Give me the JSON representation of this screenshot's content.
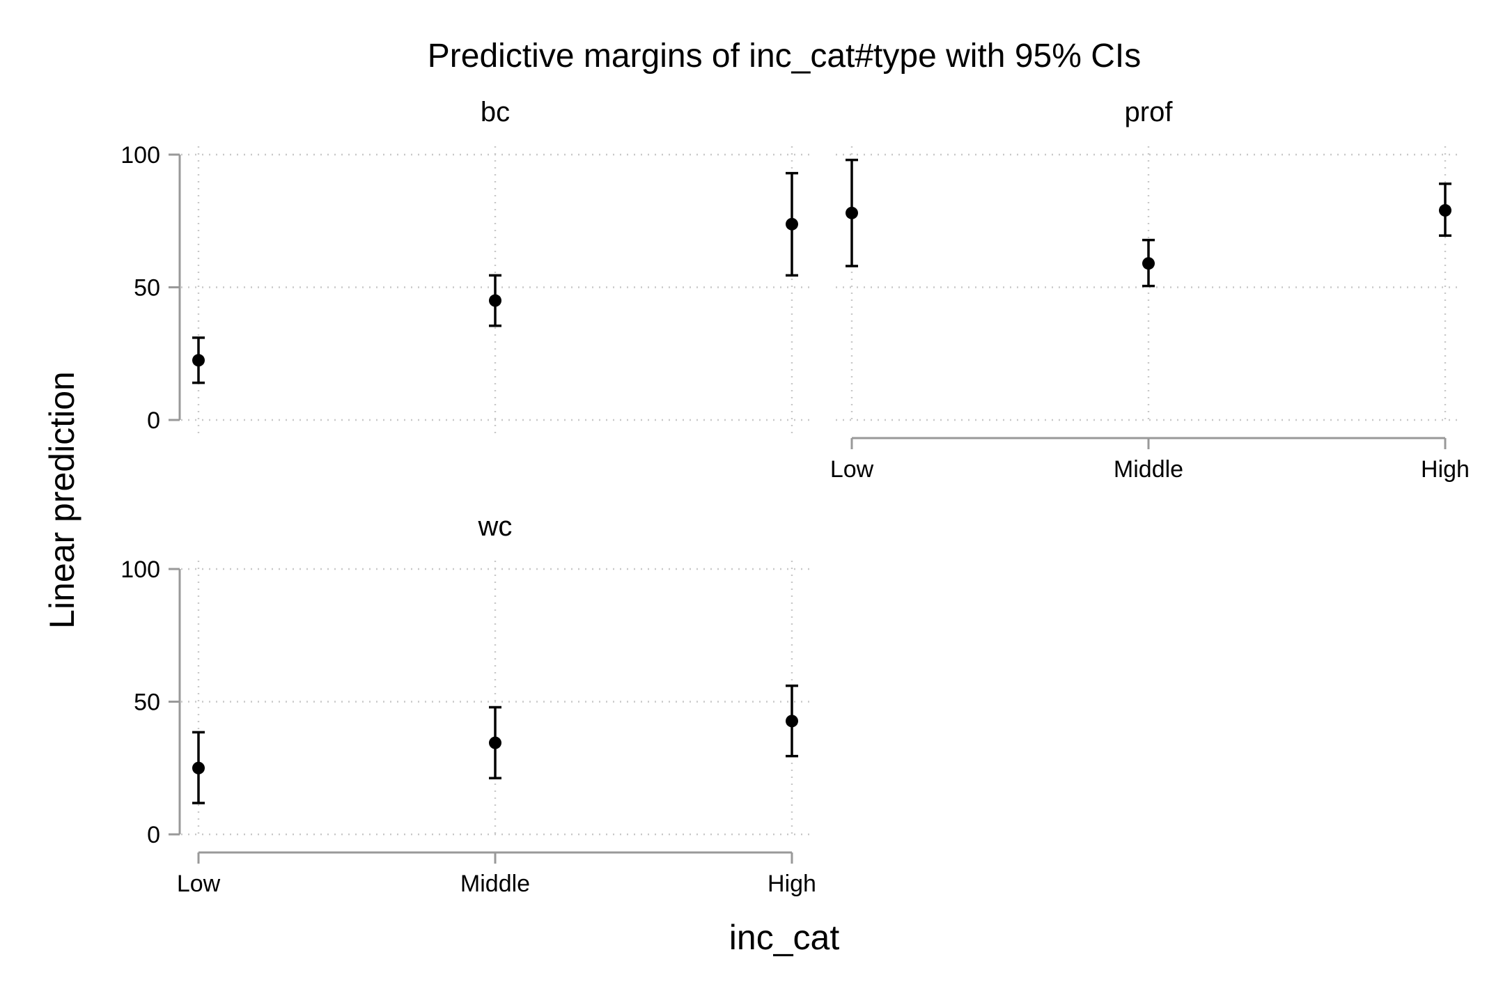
{
  "chart_data": {
    "type": "scatter",
    "title": "Predictive margins of inc_cat#type with 95% CIs",
    "xlabel": "inc_cat",
    "ylabel": "Linear prediction",
    "categories": [
      "Low",
      "Middle",
      "High"
    ],
    "ylim": [
      0,
      100
    ],
    "yticks": [
      0,
      50,
      100
    ],
    "grid": true,
    "markers": "filled circles with 95% confidence interval caps",
    "colors": {
      "marker": "#000000",
      "axis": "#999999",
      "grid": "#c8c8c8"
    },
    "panels": [
      {
        "name": "bc",
        "margins": [
          22.5,
          45,
          73.8
        ],
        "ci_lower": [
          14,
          35.5,
          54.5
        ],
        "ci_upper": [
          31,
          54.5,
          93
        ]
      },
      {
        "name": "prof",
        "margins": [
          78,
          59,
          79
        ],
        "ci_lower": [
          58,
          50.5,
          69.5
        ],
        "ci_upper": [
          98,
          67.8,
          89
        ]
      },
      {
        "name": "wc",
        "margins": [
          25,
          34.5,
          42.7
        ],
        "ci_lower": [
          11.8,
          21.2,
          29.5
        ],
        "ci_upper": [
          38.5,
          47.9,
          56
        ]
      }
    ]
  }
}
